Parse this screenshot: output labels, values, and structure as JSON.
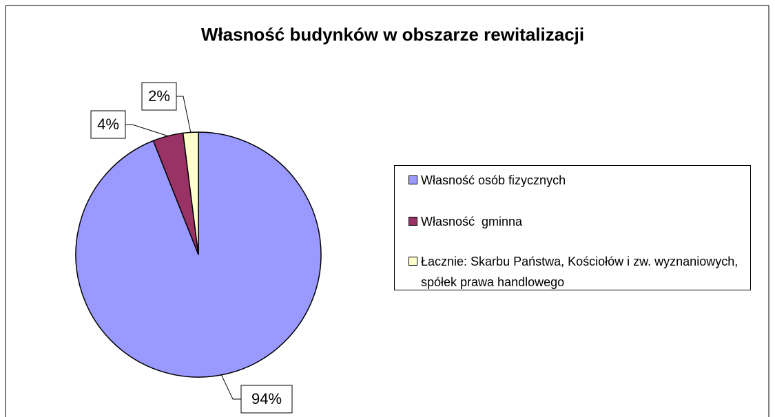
{
  "chart_data": {
    "type": "pie",
    "title": "Własność budynków w obszarze rewitalizacji",
    "categories": [
      "Własność osób fizycznych",
      "Własność  gminna",
      "Łacznie: Skarbu Państwa, Kościołów i zw. wyznaniowych, spółek prawa handlowego"
    ],
    "values": [
      94,
      4,
      2
    ],
    "value_labels": [
      "94%",
      "4%",
      "2%"
    ],
    "colors": [
      "#9999ff",
      "#993366",
      "#ffffcc"
    ],
    "legend": "right"
  }
}
